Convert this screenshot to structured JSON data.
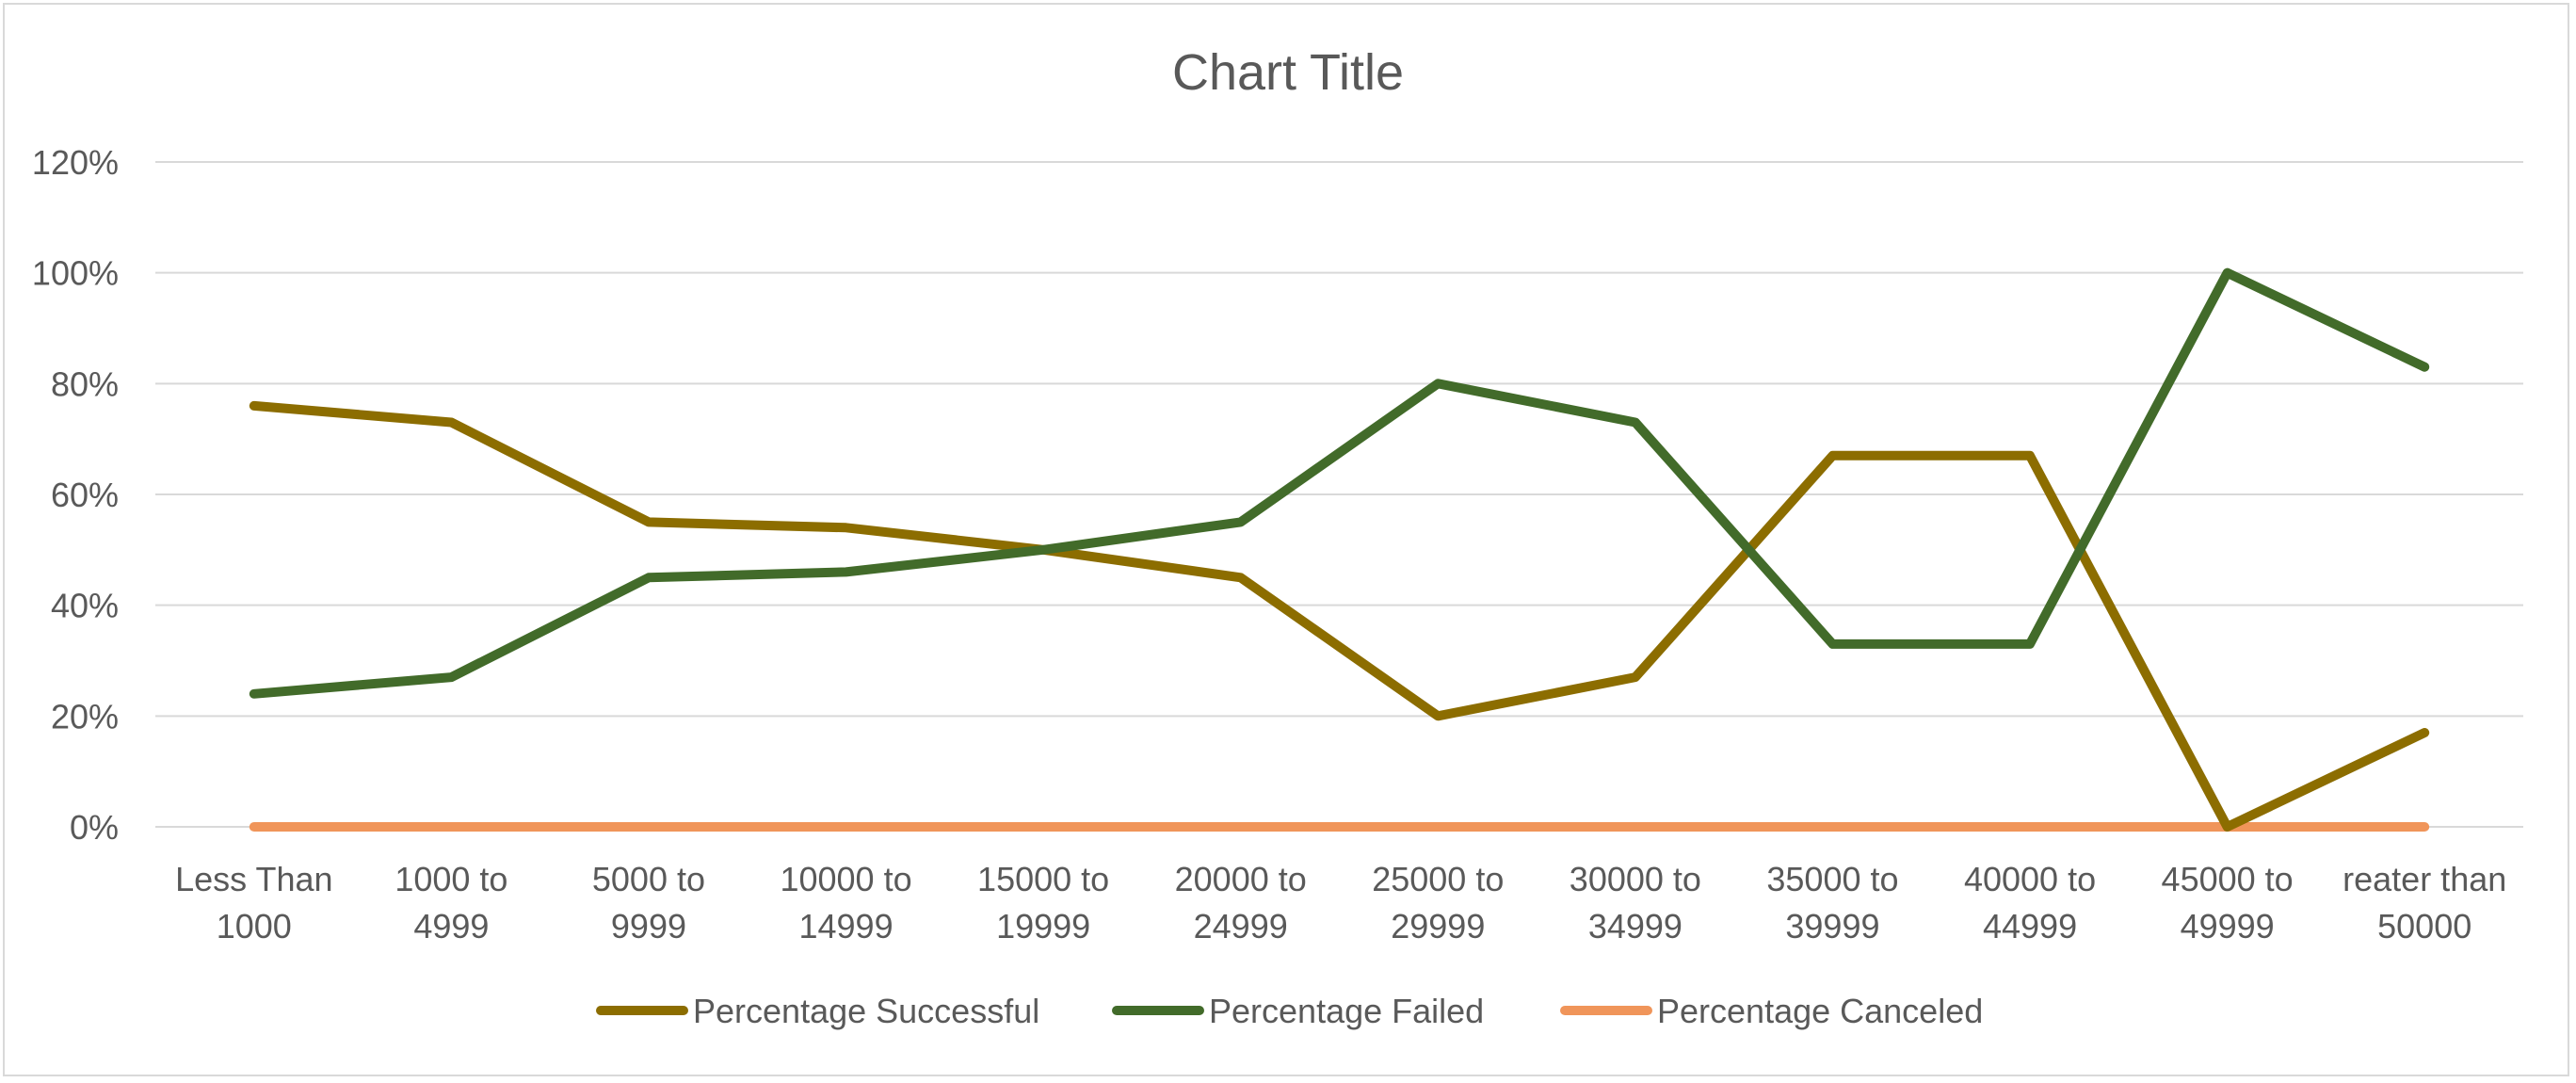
{
  "chart_data": {
    "type": "line",
    "title": "Chart Title",
    "xlabel": "",
    "ylabel": "",
    "categories": [
      [
        "Less Than",
        "1000"
      ],
      [
        "1000 to",
        "4999"
      ],
      [
        "5000 to",
        "9999"
      ],
      [
        "10000 to",
        "14999"
      ],
      [
        "15000 to",
        "19999"
      ],
      [
        "20000 to",
        "24999"
      ],
      [
        "25000 to",
        "29999"
      ],
      [
        "30000 to",
        "34999"
      ],
      [
        "35000 to",
        "39999"
      ],
      [
        "40000 to",
        "44999"
      ],
      [
        "45000 to",
        "49999"
      ],
      [
        "reater than",
        "50000"
      ]
    ],
    "ylim": [
      0,
      120
    ],
    "yticks": [
      0,
      20,
      40,
      60,
      80,
      100,
      120
    ],
    "ytick_labels": [
      "0%",
      "20%",
      "40%",
      "60%",
      "80%",
      "100%",
      "120%"
    ],
    "grid": true,
    "legend_position": "bottom",
    "series": [
      {
        "name": "Percentage Successful",
        "color": "#8c6d00",
        "values": [
          76,
          73,
          55,
          54,
          50,
          45,
          20,
          27,
          67,
          67,
          0,
          17
        ]
      },
      {
        "name": "Percentage Failed",
        "color": "#426b2a",
        "values": [
          24,
          27,
          45,
          46,
          50,
          55,
          80,
          73,
          33,
          33,
          100,
          83
        ]
      },
      {
        "name": "Percentage Canceled",
        "color": "#f0955a",
        "values": [
          0,
          0,
          0,
          0,
          0,
          0,
          0,
          0,
          0,
          0,
          0,
          0
        ]
      }
    ]
  }
}
